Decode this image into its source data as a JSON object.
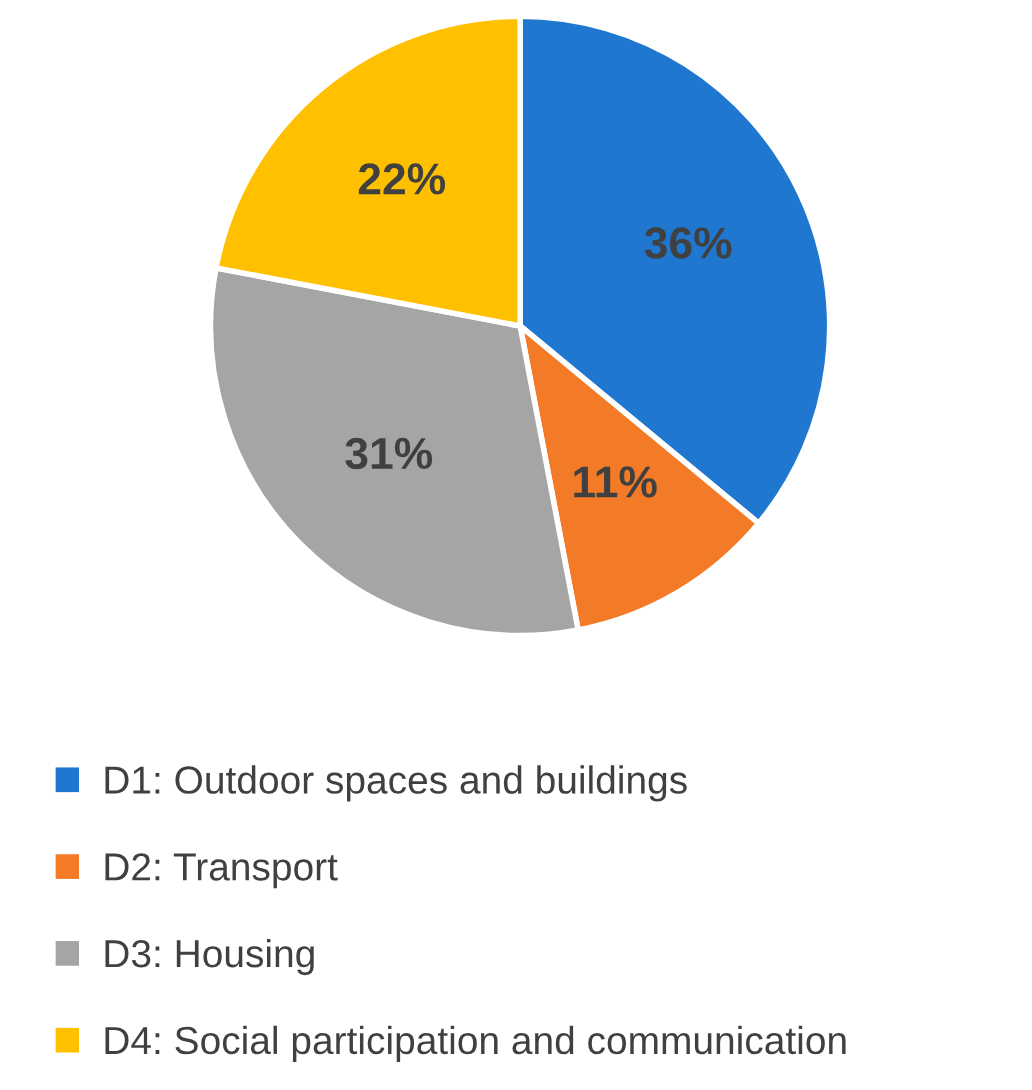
{
  "chart_data": {
    "type": "pie",
    "categories": [
      "D1: Outdoor spaces and buildings",
      "D2: Transport",
      "D3: Housing",
      "D4: Social participation and communication"
    ],
    "values": [
      36,
      11,
      31,
      22
    ],
    "value_labels": [
      "36%",
      "11%",
      "31%",
      "22%"
    ],
    "colors": [
      "#1f77d0",
      "#f37b28",
      "#a5a5a5",
      "#ffc000"
    ],
    "legend": "bottom"
  }
}
